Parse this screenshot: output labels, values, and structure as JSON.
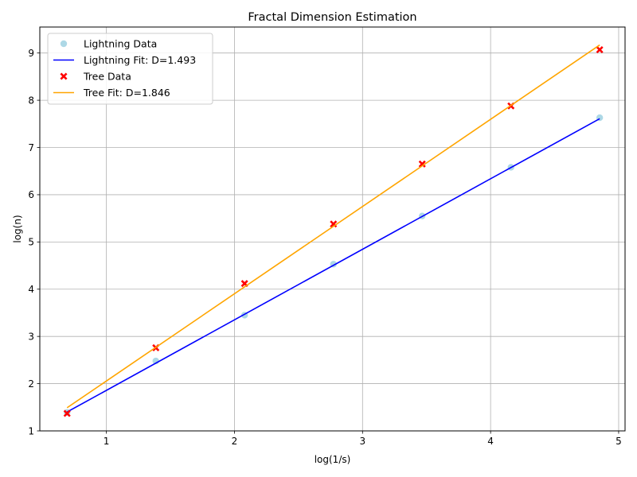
{
  "chart_data": {
    "type": "scatter",
    "title": "Fractal Dimension Estimation",
    "xlabel": "log(1/s)",
    "ylabel": "log(n)",
    "xlim": [
      0.48,
      5.05
    ],
    "ylim": [
      1.0,
      9.55
    ],
    "xticks": [
      1,
      2,
      3,
      4,
      5
    ],
    "yticks": [
      1,
      2,
      3,
      4,
      5,
      6,
      7,
      8,
      9
    ],
    "grid": true,
    "legend_position": "top-left",
    "series": [
      {
        "name": "Lightning Data",
        "kind": "points",
        "marker": "circle",
        "color": "#add8e6",
        "x": [
          0.693,
          1.386,
          2.079,
          2.773,
          3.466,
          4.159,
          4.852
        ],
        "y": [
          1.39,
          2.48,
          3.45,
          4.53,
          5.55,
          6.58,
          7.63
        ]
      },
      {
        "name": "Lightning Fit: D=1.493",
        "kind": "line",
        "color": "#0000ff",
        "x": [
          0.693,
          4.852
        ],
        "y": [
          1.4,
          7.61
        ]
      },
      {
        "name": "Tree Data",
        "kind": "points",
        "marker": "x",
        "color": "#ff0000",
        "x": [
          0.693,
          1.386,
          2.079,
          2.773,
          3.466,
          4.159,
          4.852
        ],
        "y": [
          1.37,
          2.76,
          4.12,
          5.38,
          6.65,
          7.88,
          9.07
        ]
      },
      {
        "name": "Tree Fit: D=1.846",
        "kind": "line",
        "color": "#ffa500",
        "x": [
          0.693,
          4.852
        ],
        "y": [
          1.49,
          9.17
        ]
      }
    ]
  }
}
